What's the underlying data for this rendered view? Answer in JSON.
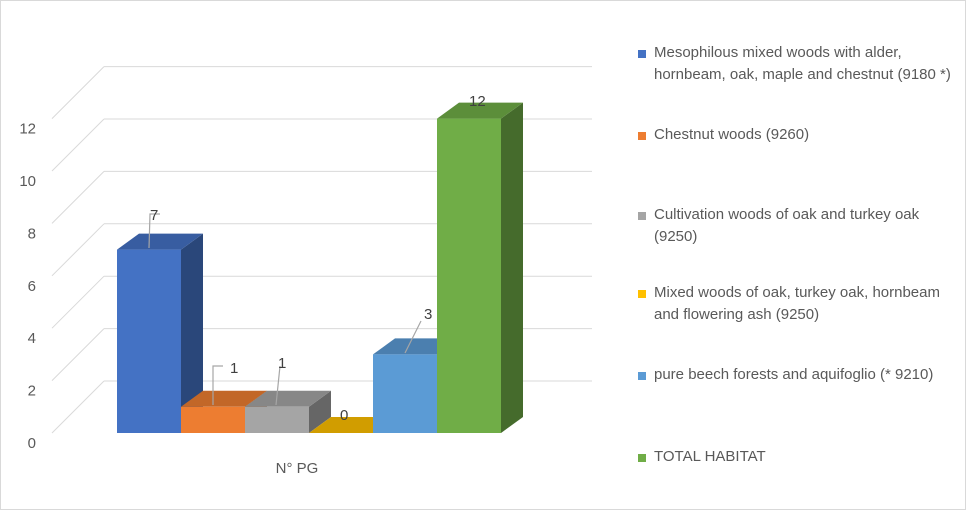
{
  "chart_data": {
    "type": "bar",
    "style": "3d-clustered-column",
    "categories": [
      "N° PG"
    ],
    "series": [
      {
        "name": "Mesophilous mixed woods with alder, hornbeam, oak, maple and chestnut (9180 *)",
        "values": [
          7
        ],
        "color": "#4472c4"
      },
      {
        "name": "Chestnut woods (9260)",
        "values": [
          1
        ],
        "color": "#ed7d31"
      },
      {
        "name": "Cultivation woods of oak and turkey oak (9250)",
        "values": [
          1
        ],
        "color": "#a5a5a5"
      },
      {
        "name": "Mixed woods of oak, turkey oak, hornbeam and flowering ash (9250)",
        "values": [
          0
        ],
        "color": "#ffc000"
      },
      {
        "name": "pure beech forests and aquifoglio (* 9210)",
        "values": [
          3
        ],
        "color": "#5b9bd5"
      },
      {
        "name": "TOTAL HABITAT",
        "values": [
          12
        ],
        "color": "#70ad47"
      }
    ],
    "y_ticks": [
      "0",
      "2",
      "4",
      "6",
      "8",
      "10",
      "12"
    ],
    "ylim": [
      0,
      12
    ],
    "grid": true,
    "legend_position": "right",
    "data_labels": true
  }
}
